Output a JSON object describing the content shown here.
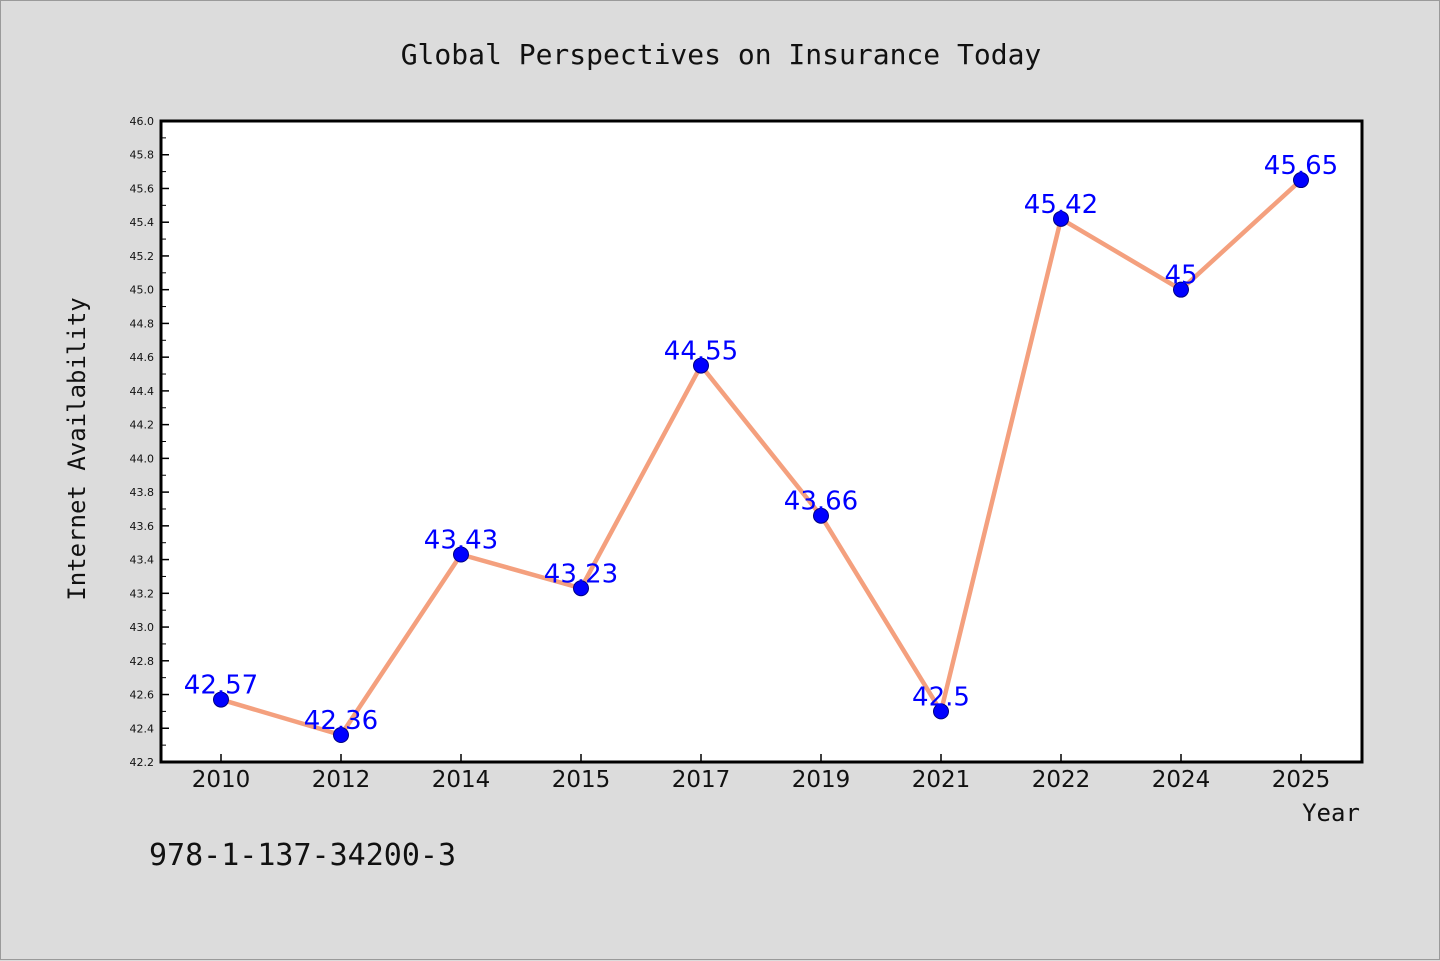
{
  "chart_data": {
    "type": "line",
    "title": "Global Perspectives on Insurance Today",
    "xlabel": "Year",
    "ylabel": "Internet Availability",
    "categories": [
      "2010",
      "2012",
      "2014",
      "2015",
      "2017",
      "2019",
      "2021",
      "2022",
      "2024",
      "2025"
    ],
    "series": [
      {
        "values": [
          42.57,
          42.36,
          43.43,
          43.23,
          44.55,
          43.66,
          42.5,
          45.42,
          45.0,
          45.65
        ],
        "labels": [
          "42.57",
          "42.36",
          "43.43",
          "43.23",
          "44.55",
          "43.66",
          "42.5",
          "45.42",
          "45",
          "45.65"
        ],
        "line_color": "#f4a07e",
        "marker_color": "#0000ff"
      }
    ],
    "ylim": [
      42.2,
      46.0
    ],
    "yticks": [
      "42.2",
      "42.4",
      "42.6",
      "42.8",
      "43.0",
      "43.2",
      "43.4",
      "43.6",
      "43.8",
      "44.0",
      "44.2",
      "44.4",
      "44.6",
      "44.8",
      "45.0",
      "45.2",
      "45.4",
      "45.6",
      "45.8",
      "46.0"
    ],
    "grid": false,
    "legend": false
  },
  "footnote": "978-1-137-34200-3",
  "colors": {
    "background": "#dcdcdc",
    "plot_background": "#ffffff",
    "label_color": "#0000ff"
  }
}
